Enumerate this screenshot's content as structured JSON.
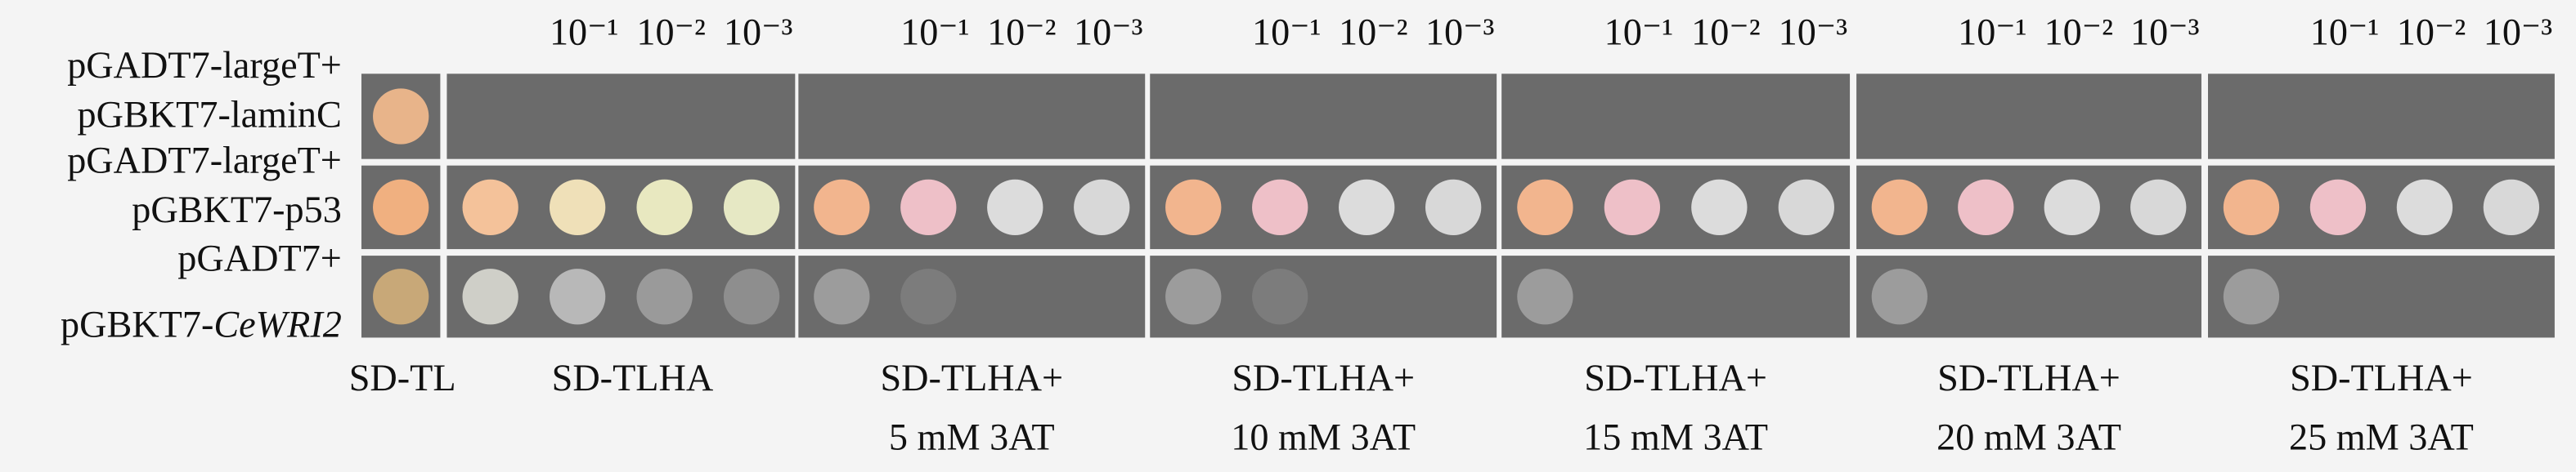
{
  "row_labels": [
    {
      "top": "pGADT7-largeT+",
      "bottom": "pGBKT7-laminC"
    },
    {
      "top": "pGADT7-largeT+",
      "bottom": "pGBKT7-p53"
    },
    {
      "top": "pGADT7+",
      "bottom": "pGBKT7-",
      "bottom_italic": "CeWRI2"
    }
  ],
  "dilutions": [
    "10⁻¹",
    "10⁻²",
    "10⁻³"
  ],
  "conditions": [
    {
      "lines": [
        "SD-TL"
      ]
    },
    {
      "lines": [
        "SD-TLHA"
      ]
    },
    {
      "lines": [
        "SD-TLHA+",
        "5 mM 3AT"
      ]
    },
    {
      "lines": [
        "SD-TLHA+",
        "10 mM 3AT"
      ]
    },
    {
      "lines": [
        "SD-TLHA+",
        "15 mM 3AT"
      ]
    },
    {
      "lines": [
        "SD-TLHA+",
        "20 mM 3AT"
      ]
    },
    {
      "lines": [
        "SD-TLHA+",
        "25 mM 3AT"
      ]
    }
  ]
}
